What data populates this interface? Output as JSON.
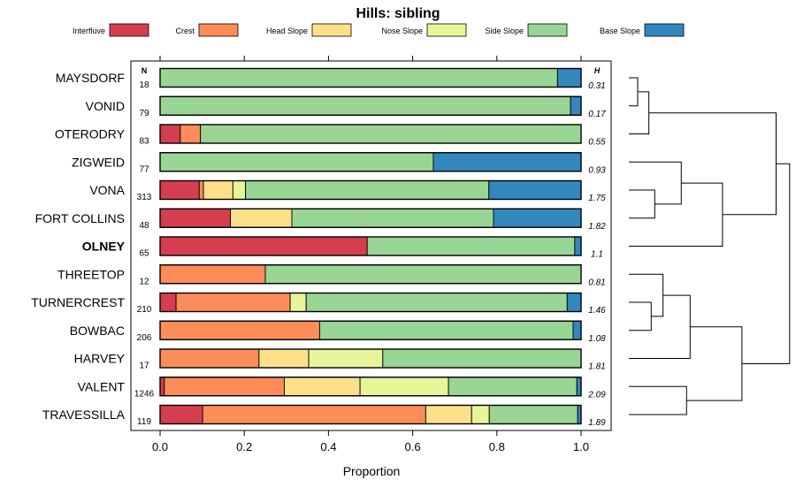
{
  "chart_data": {
    "type": "bar",
    "orientation": "horizontal",
    "stacked": true,
    "title": "Hills: sibling",
    "xlabel": "Proportion",
    "ylabel": "",
    "xlim": [
      0,
      1
    ],
    "x_ticks": [
      "0.0",
      "0.2",
      "0.4",
      "0.6",
      "0.8",
      "1.0"
    ],
    "x_tick_values": [
      0,
      0.2,
      0.4,
      0.6,
      0.8,
      1.0
    ],
    "n_header": "N",
    "h_header": "H",
    "legend_position": "top",
    "highlighted_category": "OLNEY",
    "series": [
      {
        "name": "Interfluve",
        "color": "#d53e4f"
      },
      {
        "name": "Crest",
        "color": "#fc8d59"
      },
      {
        "name": "Head Slope",
        "color": "#fee08b"
      },
      {
        "name": "Nose Slope",
        "color": "#e6f598"
      },
      {
        "name": "Side Slope",
        "color": "#99d594"
      },
      {
        "name": "Base Slope",
        "color": "#3288bd"
      }
    ],
    "rows": [
      {
        "name": "MAYSDORF",
        "n": "18",
        "h": "0.31",
        "values": [
          0,
          0,
          0,
          0,
          0.944,
          0.056
        ]
      },
      {
        "name": "VONID",
        "n": "79",
        "h": "0.17",
        "values": [
          0,
          0,
          0,
          0,
          0.975,
          0.025
        ]
      },
      {
        "name": "OTERODRY",
        "n": "83",
        "h": "0.55",
        "values": [
          0.048,
          0.048,
          0,
          0,
          0.904,
          0
        ]
      },
      {
        "name": "ZIGWEID",
        "n": "77",
        "h": "0.93",
        "values": [
          0,
          0,
          0,
          0,
          0.649,
          0.351
        ]
      },
      {
        "name": "VONA",
        "n": "313",
        "h": "1.75",
        "values": [
          0.093,
          0.01,
          0.07,
          0.03,
          0.578,
          0.219
        ]
      },
      {
        "name": "FORT COLLINS",
        "n": "48",
        "h": "1.82",
        "values": [
          0.167,
          0,
          0.146,
          0,
          0.479,
          0.208
        ]
      },
      {
        "name": "OLNEY",
        "n": "65",
        "h": "1.1",
        "values": [
          0.492,
          0,
          0,
          0,
          0.493,
          0.015
        ]
      },
      {
        "name": "THREETOP",
        "n": "12",
        "h": "0.81",
        "values": [
          0,
          0.25,
          0,
          0,
          0.75,
          0
        ]
      },
      {
        "name": "TURNERCREST",
        "n": "210",
        "h": "1.46",
        "values": [
          0.038,
          0.271,
          0,
          0.038,
          0.62,
          0.033
        ]
      },
      {
        "name": "BOWBAC",
        "n": "206",
        "h": "1.08",
        "values": [
          0,
          0.379,
          0,
          0,
          0.602,
          0.019
        ]
      },
      {
        "name": "HARVEY",
        "n": "17",
        "h": "1.81",
        "values": [
          0,
          0.235,
          0.118,
          0.176,
          0.471,
          0
        ]
      },
      {
        "name": "VALENT",
        "n": "1246",
        "h": "2.09",
        "values": [
          0.01,
          0.285,
          0.18,
          0.21,
          0.305,
          0.01
        ]
      },
      {
        "name": "TRAVESSILLA",
        "n": "119",
        "h": "1.89",
        "values": [
          0.101,
          0.53,
          0.109,
          0.042,
          0.21,
          0.008
        ]
      }
    ],
    "dendrogram": {
      "merges": [
        {
          "a": [
            "leaf",
            0
          ],
          "b": [
            "leaf",
            1
          ],
          "height": 0.15
        },
        {
          "a": [
            "node",
            0
          ],
          "b": [
            "leaf",
            2
          ],
          "height": 0.34
        },
        {
          "a": [
            "leaf",
            4
          ],
          "b": [
            "leaf",
            5
          ],
          "height": 0.44
        },
        {
          "a": [
            "node",
            2
          ],
          "b": [
            "leaf",
            3
          ],
          "height": 0.89
        },
        {
          "a": [
            "node",
            3
          ],
          "b": [
            "leaf",
            6
          ],
          "height": 1.59
        },
        {
          "a": [
            "node",
            1
          ],
          "b": [
            "node",
            4
          ],
          "height": 2.5
        },
        {
          "a": [
            "leaf",
            8
          ],
          "b": [
            "leaf",
            9
          ],
          "height": 0.38
        },
        {
          "a": [
            "leaf",
            7
          ],
          "b": [
            "node",
            6
          ],
          "height": 0.58
        },
        {
          "a": [
            "node",
            7
          ],
          "b": [
            "leaf",
            10
          ],
          "height": 1.04
        },
        {
          "a": [
            "leaf",
            11
          ],
          "b": [
            "leaf",
            12
          ],
          "height": 0.98
        },
        {
          "a": [
            "node",
            8
          ],
          "b": [
            "node",
            9
          ],
          "height": 1.92
        },
        {
          "a": [
            "node",
            5
          ],
          "b": [
            "node",
            10
          ],
          "height": 2.73
        }
      ]
    }
  }
}
